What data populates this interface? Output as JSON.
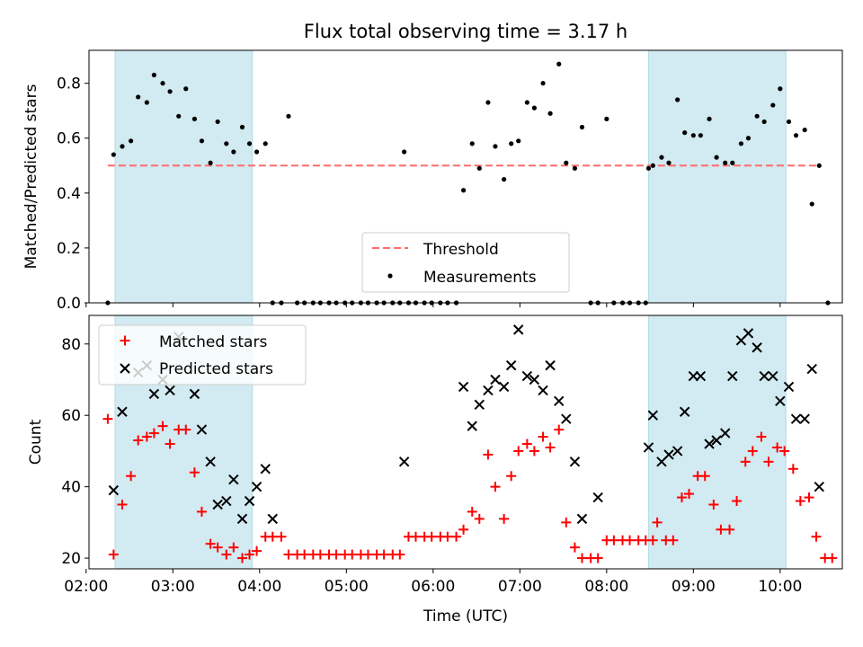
{
  "figure": {
    "title": "Flux total observing time = 3.17 h"
  },
  "colors": {
    "background": "#ffffff",
    "shade": "#add8e6",
    "threshold": "#ff6b6b",
    "measurement": "#000000",
    "matched": "#ff0000",
    "predicted": "#000000"
  },
  "chart_data": [
    {
      "type": "scatter",
      "ylabel": "Matched/Predicted stars",
      "xlabel": "",
      "x_unit": "hours UTC",
      "xlim": [
        "02:02",
        "10:43"
      ],
      "ylim": [
        0,
        0.92
      ],
      "yticks": [
        0,
        0.2,
        0.4,
        0.6,
        0.8
      ],
      "ytick_labels": [
        "0.0",
        "0.2",
        "0.4",
        "0.6",
        "0.8"
      ],
      "grid": false,
      "legend_position": "lower center",
      "shaded_intervals": [
        [
          "02:20",
          "03:55"
        ],
        [
          "08:29",
          "10:04"
        ]
      ],
      "threshold": {
        "name": "Threshold",
        "y": 0.5,
        "x_range": [
          "02:15",
          "10:26"
        ],
        "style": "dashed"
      },
      "series": [
        {
          "name": "Measurements",
          "marker": "dot",
          "points": [
            [
              "02:15",
              0.0
            ],
            [
              "02:19",
              0.54
            ],
            [
              "02:25",
              0.57
            ],
            [
              "02:31",
              0.59
            ],
            [
              "02:36",
              0.75
            ],
            [
              "02:42",
              0.73
            ],
            [
              "02:47",
              0.83
            ],
            [
              "02:53",
              0.8
            ],
            [
              "02:58",
              0.77
            ],
            [
              "03:04",
              0.68
            ],
            [
              "03:09",
              0.78
            ],
            [
              "03:15",
              0.67
            ],
            [
              "03:20",
              0.59
            ],
            [
              "03:26",
              0.51
            ],
            [
              "03:31",
              0.66
            ],
            [
              "03:37",
              0.58
            ],
            [
              "03:42",
              0.55
            ],
            [
              "03:48",
              0.64
            ],
            [
              "03:53",
              0.58
            ],
            [
              "03:58",
              0.55
            ],
            [
              "04:04",
              0.58
            ],
            [
              "04:09",
              0.0
            ],
            [
              "04:15",
              0.0
            ],
            [
              "04:20",
              0.68
            ],
            [
              "04:26",
              0.0
            ],
            [
              "04:31",
              0.0
            ],
            [
              "04:37",
              0.0
            ],
            [
              "04:42",
              0.0
            ],
            [
              "04:48",
              0.0
            ],
            [
              "04:53",
              0.0
            ],
            [
              "04:59",
              0.0
            ],
            [
              "05:04",
              0.0
            ],
            [
              "05:10",
              0.0
            ],
            [
              "05:15",
              0.0
            ],
            [
              "05:21",
              0.0
            ],
            [
              "05:26",
              0.0
            ],
            [
              "05:32",
              0.0
            ],
            [
              "05:37",
              0.0
            ],
            [
              "05:43",
              0.0
            ],
            [
              "05:48",
              0.0
            ],
            [
              "05:54",
              0.0
            ],
            [
              "05:59",
              0.0
            ],
            [
              "06:05",
              0.0
            ],
            [
              "06:10",
              0.0
            ],
            [
              "06:16",
              0.0
            ],
            [
              "05:40",
              0.55
            ],
            [
              "06:21",
              0.41
            ],
            [
              "06:27",
              0.58
            ],
            [
              "06:32",
              0.49
            ],
            [
              "06:38",
              0.73
            ],
            [
              "06:43",
              0.57
            ],
            [
              "06:49",
              0.45
            ],
            [
              "06:54",
              0.58
            ],
            [
              "06:59",
              0.59
            ],
            [
              "07:05",
              0.73
            ],
            [
              "07:10",
              0.71
            ],
            [
              "07:16",
              0.8
            ],
            [
              "07:21",
              0.69
            ],
            [
              "07:27",
              0.87
            ],
            [
              "07:32",
              0.51
            ],
            [
              "07:38",
              0.49
            ],
            [
              "07:43",
              0.64
            ],
            [
              "07:49",
              0.0
            ],
            [
              "07:54",
              0.0
            ],
            [
              "08:00",
              0.67
            ],
            [
              "08:05",
              0.0
            ],
            [
              "08:11",
              0.0
            ],
            [
              "08:16",
              0.0
            ],
            [
              "08:22",
              0.0
            ],
            [
              "08:27",
              0.0
            ],
            [
              "08:29",
              0.49
            ],
            [
              "08:32",
              0.5
            ],
            [
              "08:38",
              0.53
            ],
            [
              "08:43",
              0.51
            ],
            [
              "08:49",
              0.74
            ],
            [
              "08:54",
              0.62
            ],
            [
              "09:00",
              0.61
            ],
            [
              "09:05",
              0.61
            ],
            [
              "09:11",
              0.67
            ],
            [
              "09:16",
              0.53
            ],
            [
              "09:22",
              0.51
            ],
            [
              "09:27",
              0.51
            ],
            [
              "09:33",
              0.58
            ],
            [
              "09:38",
              0.6
            ],
            [
              "09:44",
              0.68
            ],
            [
              "09:49",
              0.66
            ],
            [
              "09:55",
              0.72
            ],
            [
              "10:00",
              0.78
            ],
            [
              "10:06",
              0.66
            ],
            [
              "10:11",
              0.61
            ],
            [
              "10:17",
              0.63
            ],
            [
              "10:22",
              0.36
            ],
            [
              "10:27",
              0.5
            ],
            [
              "10:33",
              0.0
            ]
          ]
        }
      ]
    },
    {
      "type": "scatter",
      "xlabel": "Time (UTC)",
      "ylabel": "Count",
      "xlim": [
        "02:02",
        "10:43"
      ],
      "ylim": [
        17,
        88
      ],
      "yticks": [
        20,
        40,
        60,
        80
      ],
      "ytick_labels": [
        "20",
        "40",
        "60",
        "80"
      ],
      "xticks": [
        "02:00",
        "03:00",
        "04:00",
        "05:00",
        "06:00",
        "07:00",
        "08:00",
        "09:00",
        "10:00"
      ],
      "xtick_labels": [
        "02:00",
        "03:00",
        "04:00",
        "05:00",
        "06:00",
        "07:00",
        "08:00",
        "09:00",
        "10:00"
      ],
      "grid": false,
      "legend_position": "upper left",
      "shaded_intervals": [
        [
          "02:20",
          "03:55"
        ],
        [
          "08:29",
          "10:04"
        ]
      ],
      "series": [
        {
          "name": "Matched stars",
          "marker": "plus",
          "points": [
            [
              "02:15",
              59
            ],
            [
              "02:19",
              21
            ],
            [
              "02:25",
              35
            ],
            [
              "02:31",
              43
            ],
            [
              "02:36",
              53
            ],
            [
              "02:42",
              54
            ],
            [
              "02:47",
              55
            ],
            [
              "02:53",
              57
            ],
            [
              "02:58",
              52
            ],
            [
              "03:04",
              56
            ],
            [
              "03:09",
              56
            ],
            [
              "03:15",
              44
            ],
            [
              "03:20",
              33
            ],
            [
              "03:26",
              24
            ],
            [
              "03:31",
              23
            ],
            [
              "03:37",
              21
            ],
            [
              "03:42",
              23
            ],
            [
              "03:48",
              20
            ],
            [
              "03:53",
              21
            ],
            [
              "03:58",
              22
            ],
            [
              "04:04",
              26
            ],
            [
              "04:09",
              26
            ],
            [
              "04:15",
              26
            ],
            [
              "04:20",
              21
            ],
            [
              "04:26",
              21
            ],
            [
              "04:31",
              21
            ],
            [
              "04:37",
              21
            ],
            [
              "04:42",
              21
            ],
            [
              "04:48",
              21
            ],
            [
              "04:53",
              21
            ],
            [
              "04:59",
              21
            ],
            [
              "05:04",
              21
            ],
            [
              "05:10",
              21
            ],
            [
              "05:15",
              21
            ],
            [
              "05:21",
              21
            ],
            [
              "05:26",
              21
            ],
            [
              "05:32",
              21
            ],
            [
              "05:37",
              21
            ],
            [
              "05:43",
              26
            ],
            [
              "05:48",
              26
            ],
            [
              "05:54",
              26
            ],
            [
              "05:59",
              26
            ],
            [
              "06:05",
              26
            ],
            [
              "06:10",
              26
            ],
            [
              "06:16",
              26
            ],
            [
              "06:21",
              28
            ],
            [
              "06:27",
              33
            ],
            [
              "06:32",
              31
            ],
            [
              "06:38",
              49
            ],
            [
              "06:43",
              40
            ],
            [
              "06:49",
              31
            ],
            [
              "06:54",
              43
            ],
            [
              "06:59",
              50
            ],
            [
              "07:05",
              52
            ],
            [
              "07:10",
              50
            ],
            [
              "07:16",
              54
            ],
            [
              "07:21",
              51
            ],
            [
              "07:27",
              56
            ],
            [
              "07:32",
              30
            ],
            [
              "07:38",
              23
            ],
            [
              "07:43",
              20
            ],
            [
              "07:49",
              20
            ],
            [
              "07:54",
              20
            ],
            [
              "08:00",
              25
            ],
            [
              "08:05",
              25
            ],
            [
              "08:11",
              25
            ],
            [
              "08:16",
              25
            ],
            [
              "08:22",
              25
            ],
            [
              "08:27",
              25
            ],
            [
              "08:32",
              25
            ],
            [
              "08:35",
              30
            ],
            [
              "08:41",
              25
            ],
            [
              "08:46",
              25
            ],
            [
              "08:52",
              37
            ],
            [
              "08:57",
              38
            ],
            [
              "09:03",
              43
            ],
            [
              "09:08",
              43
            ],
            [
              "09:14",
              35
            ],
            [
              "09:19",
              28
            ],
            [
              "09:25",
              28
            ],
            [
              "09:30",
              36
            ],
            [
              "09:36",
              47
            ],
            [
              "09:41",
              50
            ],
            [
              "09:47",
              54
            ],
            [
              "09:52",
              47
            ],
            [
              "09:58",
              51
            ],
            [
              "10:03",
              50
            ],
            [
              "10:09",
              45
            ],
            [
              "10:14",
              36
            ],
            [
              "10:20",
              37
            ],
            [
              "10:25",
              26
            ],
            [
              "10:31",
              20
            ],
            [
              "10:36",
              20
            ]
          ]
        },
        {
          "name": "Predicted stars",
          "marker": "x",
          "points": [
            [
              "02:19",
              39
            ],
            [
              "02:25",
              61
            ],
            [
              "02:36",
              72
            ],
            [
              "02:42",
              74
            ],
            [
              "02:47",
              66
            ],
            [
              "02:53",
              70
            ],
            [
              "02:58",
              67
            ],
            [
              "03:04",
              82
            ],
            [
              "03:15",
              66
            ],
            [
              "03:20",
              56
            ],
            [
              "03:26",
              47
            ],
            [
              "03:31",
              35
            ],
            [
              "03:37",
              36
            ],
            [
              "03:42",
              42
            ],
            [
              "03:48",
              31
            ],
            [
              "03:53",
              36
            ],
            [
              "03:58",
              40
            ],
            [
              "04:04",
              45
            ],
            [
              "04:09",
              31
            ],
            [
              "05:40",
              47
            ],
            [
              "06:21",
              68
            ],
            [
              "06:27",
              57
            ],
            [
              "06:32",
              63
            ],
            [
              "06:38",
              67
            ],
            [
              "06:43",
              70
            ],
            [
              "06:49",
              68
            ],
            [
              "06:54",
              74
            ],
            [
              "06:59",
              84
            ],
            [
              "07:05",
              71
            ],
            [
              "07:10",
              70
            ],
            [
              "07:16",
              67
            ],
            [
              "07:21",
              74
            ],
            [
              "07:27",
              64
            ],
            [
              "07:32",
              59
            ],
            [
              "07:38",
              47
            ],
            [
              "07:43",
              31
            ],
            [
              "07:54",
              37
            ],
            [
              "08:29",
              51
            ],
            [
              "08:32",
              60
            ],
            [
              "08:38",
              47
            ],
            [
              "08:43",
              49
            ],
            [
              "08:49",
              50
            ],
            [
              "08:54",
              61
            ],
            [
              "09:00",
              71
            ],
            [
              "09:05",
              71
            ],
            [
              "09:11",
              52
            ],
            [
              "09:16",
              53
            ],
            [
              "09:22",
              55
            ],
            [
              "09:27",
              71
            ],
            [
              "09:33",
              81
            ],
            [
              "09:38",
              83
            ],
            [
              "09:44",
              79
            ],
            [
              "09:49",
              71
            ],
            [
              "09:55",
              71
            ],
            [
              "10:00",
              64
            ],
            [
              "10:06",
              68
            ],
            [
              "10:11",
              59
            ],
            [
              "10:17",
              59
            ],
            [
              "10:22",
              73
            ],
            [
              "10:27",
              40
            ]
          ]
        }
      ]
    }
  ]
}
